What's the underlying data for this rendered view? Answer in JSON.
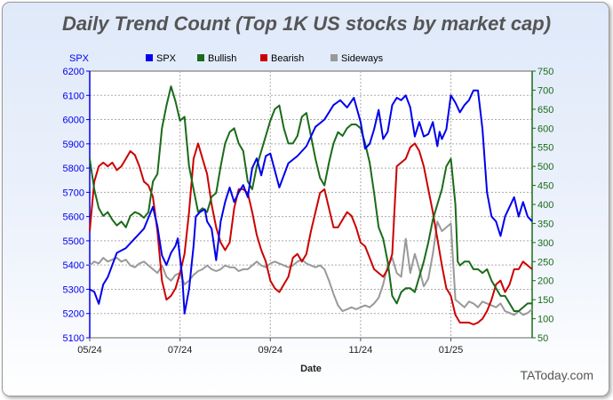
{
  "chart_data": {
    "type": "line",
    "title": "Daily Trend Count (Top 1K US stocks by market cap)",
    "watermark": "TAToday.com",
    "xlabel": "Date",
    "ylabel_left": "SPX",
    "ylim_left": [
      5100,
      6200
    ],
    "yticks_left": [
      5100,
      5200,
      5300,
      5400,
      5500,
      5600,
      5700,
      5800,
      5900,
      6000,
      6100,
      6200
    ],
    "ylim_right": [
      50,
      750
    ],
    "yticks_right": [
      50,
      100,
      150,
      200,
      250,
      300,
      350,
      400,
      450,
      500,
      550,
      600,
      650,
      700,
      750
    ],
    "grid": true,
    "legend_position": "top",
    "x_ticks": [
      {
        "label": "05/24",
        "month": 0
      },
      {
        "label": "07/24",
        "month": 2
      },
      {
        "label": "09/24",
        "month": 4
      },
      {
        "label": "11/24",
        "month": 6
      },
      {
        "label": "01/25",
        "month": 8
      }
    ],
    "x_range_months": [
      0,
      9.8
    ],
    "series": [
      {
        "name": "SPX",
        "axis": "left",
        "color": "#0000ee",
        "x": [
          0,
          0.1,
          0.2,
          0.3,
          0.4,
          0.5,
          0.6,
          0.8,
          1.0,
          1.2,
          1.4,
          1.5,
          1.6,
          1.7,
          1.8,
          1.9,
          1.95,
          2.05,
          2.1,
          2.2,
          2.3,
          2.35,
          2.45,
          2.55,
          2.6,
          2.7,
          2.8,
          2.9,
          3.0,
          3.1,
          3.2,
          3.3,
          3.4,
          3.5,
          3.6,
          3.7,
          3.8,
          3.9,
          4.0,
          4.2,
          4.4,
          4.6,
          4.8,
          5.0,
          5.2,
          5.4,
          5.55,
          5.7,
          5.85,
          6.0,
          6.1,
          6.2,
          6.3,
          6.4,
          6.5,
          6.6,
          6.7,
          6.8,
          6.9,
          7.0,
          7.1,
          7.2,
          7.3,
          7.4,
          7.5,
          7.6,
          7.7,
          7.75,
          7.8,
          7.9,
          8.0,
          8.1,
          8.2,
          8.3,
          8.4,
          8.5,
          8.6,
          8.7,
          8.8,
          8.9,
          9.0,
          9.1,
          9.2,
          9.3,
          9.4,
          9.5,
          9.6,
          9.7,
          9.8
        ],
        "values": [
          5300,
          5290,
          5240,
          5320,
          5350,
          5400,
          5450,
          5470,
          5510,
          5550,
          5640,
          5560,
          5440,
          5400,
          5450,
          5480,
          5510,
          5350,
          5200,
          5300,
          5480,
          5600,
          5620,
          5630,
          5580,
          5550,
          5420,
          5580,
          5660,
          5720,
          5660,
          5700,
          5730,
          5680,
          5800,
          5840,
          5770,
          5850,
          5860,
          5720,
          5820,
          5850,
          5890,
          5970,
          6000,
          6060,
          6080,
          6050,
          6090,
          5990,
          5880,
          5900,
          5960,
          6040,
          5920,
          5950,
          6060,
          6090,
          6080,
          6100,
          6050,
          5930,
          5990,
          5930,
          5940,
          5990,
          5890,
          5950,
          5920,
          5960,
          6100,
          6070,
          6030,
          6060,
          6080,
          6120,
          6120,
          5960,
          5700,
          5600,
          5580,
          5520,
          5600,
          5640,
          5680,
          5600,
          5660,
          5600,
          5580
        ]
      },
      {
        "name": "Bullish",
        "axis": "right",
        "color": "#1a6b1a",
        "x": [
          0,
          0.1,
          0.2,
          0.3,
          0.4,
          0.5,
          0.6,
          0.7,
          0.8,
          0.9,
          1.0,
          1.1,
          1.2,
          1.3,
          1.4,
          1.5,
          1.6,
          1.7,
          1.8,
          1.9,
          2.0,
          2.1,
          2.2,
          2.3,
          2.4,
          2.5,
          2.6,
          2.7,
          2.8,
          2.9,
          3.0,
          3.1,
          3.2,
          3.3,
          3.4,
          3.5,
          3.6,
          3.7,
          3.8,
          3.9,
          4.0,
          4.1,
          4.2,
          4.3,
          4.4,
          4.5,
          4.6,
          4.7,
          4.8,
          4.9,
          5.0,
          5.1,
          5.2,
          5.3,
          5.4,
          5.5,
          5.6,
          5.7,
          5.8,
          5.9,
          6.0,
          6.1,
          6.2,
          6.3,
          6.4,
          6.5,
          6.6,
          6.7,
          6.8,
          6.9,
          7.0,
          7.1,
          7.2,
          7.3,
          7.4,
          7.5,
          7.6,
          7.7,
          7.8,
          7.9,
          8.0,
          8.1,
          8.15,
          8.2,
          8.3,
          8.4,
          8.5,
          8.6,
          8.7,
          8.8,
          8.9,
          9.0,
          9.1,
          9.2,
          9.3,
          9.4,
          9.5,
          9.6,
          9.7,
          9.8
        ],
        "values": [
          520,
          440,
          390,
          370,
          380,
          360,
          345,
          355,
          340,
          370,
          380,
          375,
          365,
          380,
          460,
          480,
          600,
          660,
          710,
          670,
          620,
          630,
          500,
          440,
          380,
          390,
          380,
          420,
          430,
          500,
          560,
          590,
          600,
          560,
          540,
          460,
          440,
          500,
          540,
          580,
          620,
          650,
          660,
          600,
          560,
          560,
          580,
          630,
          640,
          580,
          520,
          470,
          450,
          510,
          560,
          590,
          580,
          600,
          610,
          610,
          600,
          560,
          510,
          430,
          340,
          310,
          250,
          160,
          140,
          170,
          180,
          180,
          170,
          210,
          250,
          300,
          360,
          400,
          440,
          500,
          520,
          400,
          250,
          240,
          250,
          250,
          230,
          230,
          220,
          230,
          200,
          180,
          160,
          160,
          140,
          120,
          120,
          130,
          140,
          140
        ]
      },
      {
        "name": "Bearish",
        "axis": "right",
        "color": "#cc0000",
        "x": [
          0,
          0.1,
          0.2,
          0.3,
          0.4,
          0.5,
          0.6,
          0.7,
          0.8,
          0.9,
          1.0,
          1.1,
          1.2,
          1.3,
          1.4,
          1.5,
          1.6,
          1.7,
          1.8,
          1.9,
          2.0,
          2.1,
          2.2,
          2.3,
          2.4,
          2.5,
          2.6,
          2.7,
          2.8,
          2.9,
          3.0,
          3.1,
          3.2,
          3.3,
          3.4,
          3.5,
          3.6,
          3.7,
          3.8,
          3.9,
          4.0,
          4.1,
          4.2,
          4.3,
          4.4,
          4.5,
          4.6,
          4.7,
          4.8,
          4.9,
          5.0,
          5.1,
          5.2,
          5.3,
          5.4,
          5.5,
          5.6,
          5.7,
          5.8,
          5.9,
          6.0,
          6.1,
          6.2,
          6.3,
          6.4,
          6.5,
          6.6,
          6.7,
          6.8,
          6.9,
          7.0,
          7.1,
          7.2,
          7.3,
          7.4,
          7.5,
          7.6,
          7.7,
          7.8,
          7.9,
          8.0,
          8.1,
          8.2,
          8.3,
          8.4,
          8.5,
          8.6,
          8.7,
          8.8,
          8.9,
          9.0,
          9.1,
          9.2,
          9.3,
          9.4,
          9.5,
          9.6,
          9.7,
          9.8
        ],
        "values": [
          330,
          460,
          500,
          510,
          500,
          510,
          490,
          500,
          520,
          540,
          530,
          500,
          460,
          450,
          420,
          330,
          200,
          150,
          160,
          180,
          220,
          270,
          380,
          520,
          560,
          520,
          480,
          400,
          340,
          300,
          280,
          300,
          390,
          440,
          440,
          430,
          380,
          320,
          280,
          250,
          200,
          180,
          170,
          190,
          210,
          260,
          270,
          250,
          270,
          330,
          380,
          430,
          440,
          390,
          340,
          340,
          360,
          380,
          370,
          340,
          300,
          290,
          260,
          230,
          220,
          210,
          230,
          270,
          500,
          510,
          520,
          550,
          560,
          540,
          500,
          440,
          380,
          310,
          240,
          180,
          160,
          110,
          90,
          90,
          90,
          85,
          90,
          100,
          120,
          150,
          190,
          200,
          170,
          190,
          230,
          230,
          250,
          240,
          230
        ]
      },
      {
        "name": "Sideways",
        "axis": "right",
        "color": "#999999",
        "x": [
          0,
          0.1,
          0.2,
          0.3,
          0.4,
          0.5,
          0.6,
          0.7,
          0.8,
          0.9,
          1.0,
          1.1,
          1.2,
          1.3,
          1.4,
          1.5,
          1.6,
          1.7,
          1.8,
          1.9,
          2.0,
          2.1,
          2.2,
          2.3,
          2.4,
          2.5,
          2.6,
          2.7,
          2.8,
          2.9,
          3.0,
          3.1,
          3.2,
          3.3,
          3.4,
          3.5,
          3.6,
          3.7,
          3.8,
          3.9,
          4.0,
          4.1,
          4.2,
          4.3,
          4.4,
          4.5,
          4.6,
          4.7,
          4.8,
          4.9,
          5.0,
          5.1,
          5.2,
          5.3,
          5.4,
          5.5,
          5.6,
          5.7,
          5.8,
          5.9,
          6.0,
          6.1,
          6.2,
          6.3,
          6.4,
          6.5,
          6.6,
          6.7,
          6.8,
          6.9,
          7.0,
          7.1,
          7.2,
          7.3,
          7.4,
          7.5,
          7.6,
          7.7,
          7.8,
          7.9,
          8.0,
          8.1,
          8.2,
          8.3,
          8.4,
          8.5,
          8.6,
          8.7,
          8.8,
          8.9,
          9.0,
          9.1,
          9.2,
          9.3,
          9.4,
          9.5,
          9.6,
          9.7,
          9.8
        ],
        "values": [
          240,
          250,
          245,
          260,
          250,
          255,
          260,
          250,
          255,
          240,
          235,
          245,
          250,
          240,
          230,
          220,
          240,
          210,
          200,
          215,
          220,
          190,
          200,
          215,
          225,
          230,
          240,
          230,
          225,
          230,
          240,
          235,
          235,
          225,
          230,
          230,
          240,
          250,
          240,
          235,
          245,
          250,
          245,
          240,
          235,
          240,
          250,
          255,
          245,
          240,
          235,
          240,
          230,
          200,
          165,
          135,
          120,
          125,
          130,
          125,
          130,
          135,
          130,
          140,
          155,
          190,
          240,
          260,
          220,
          210,
          310,
          220,
          270,
          230,
          185,
          205,
          270,
          355,
          330,
          340,
          350,
          150,
          140,
          130,
          145,
          140,
          130,
          145,
          140,
          135,
          130,
          140,
          120,
          115,
          110,
          120,
          110,
          115,
          125
        ]
      }
    ]
  }
}
